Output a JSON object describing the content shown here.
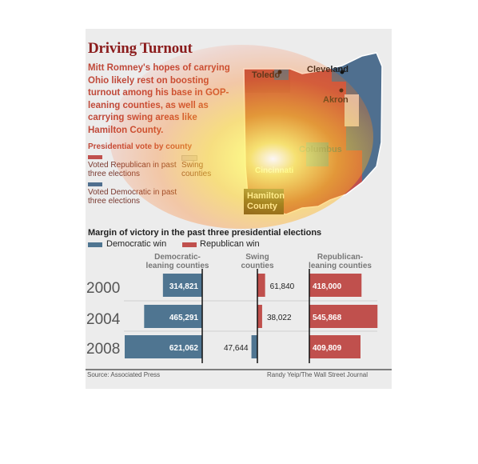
{
  "title": "Driving Turnout",
  "intro": "Mitt Romney's hopes of carrying Ohio likely rest on boosting turnout among his base in GOP-leaning counties, as well as carrying swing areas like Hamilton County.",
  "map_legend": {
    "heading": "Presidential vote by county",
    "items": [
      {
        "label": "Voted Republican in past three elections",
        "color": "#c0504d"
      },
      {
        "label": "Swing counties",
        "color": "#d9d9d9"
      },
      {
        "label": "Voted Democratic in past three elections",
        "color": "#4f6f8f"
      }
    ]
  },
  "map_labels": {
    "toledo": "Toledo",
    "cleveland": "Cleveland",
    "akron": "Akron",
    "columbus": "Columbus",
    "cincinnati": "Cincinnati",
    "callout": "Hamilton County"
  },
  "colors": {
    "democratic": "#4f7591",
    "republican": "#c0504d",
    "title": "#8b1c1c"
  },
  "chart_data": {
    "type": "bar",
    "title": "Margin of victory in the past three presidential elections",
    "legend": [
      {
        "name": "Democratic win",
        "color": "#4f7591"
      },
      {
        "name": "Republican win",
        "color": "#c0504d"
      }
    ],
    "groups": [
      "Democratic-leaning counties",
      "Swing counties",
      "Republican-leaning counties"
    ],
    "categories": [
      "2000",
      "2004",
      "2008"
    ],
    "series": [
      {
        "name": "Democratic-leaning counties",
        "values": [
          314821,
          465291,
          621062
        ],
        "labels": [
          "314,821",
          "465,291",
          "621,062"
        ],
        "winner": [
          "Democratic",
          "Democratic",
          "Democratic"
        ]
      },
      {
        "name": "Swing counties",
        "values": [
          61840,
          38022,
          47644
        ],
        "labels": [
          "61,840",
          "38,022",
          "47,644"
        ],
        "winner": [
          "Republican",
          "Republican",
          "Democratic"
        ]
      },
      {
        "name": "Republican-leaning counties",
        "values": [
          418000,
          545868,
          409809
        ],
        "labels": [
          "418,000",
          "545,868",
          "409,809"
        ],
        "winner": [
          "Republican",
          "Republican",
          "Republican"
        ]
      }
    ]
  },
  "source": "Source: Associated Press",
  "credit": "Randy Yeip/The Wall Street Journal"
}
